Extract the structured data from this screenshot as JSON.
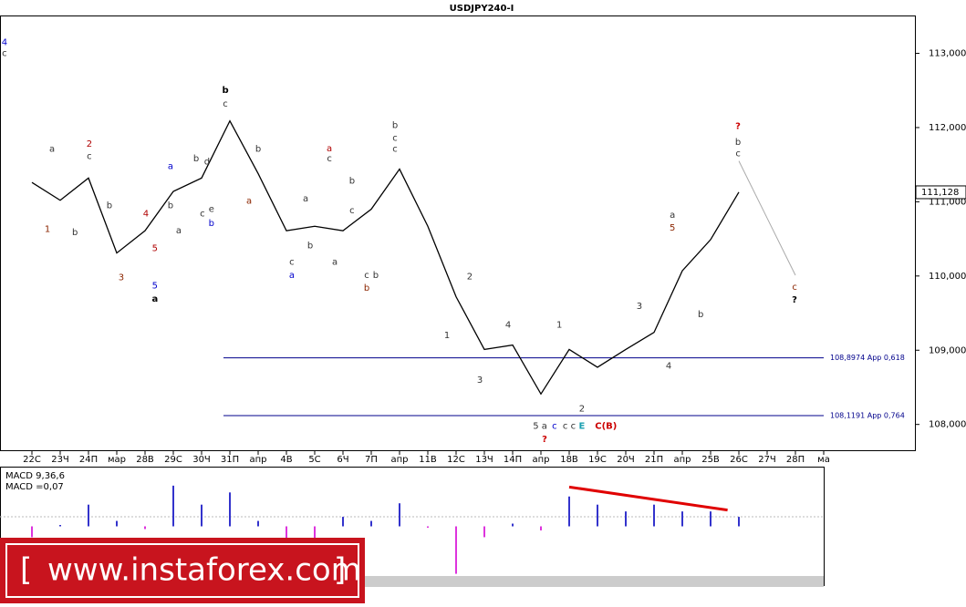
{
  "chart_data": {
    "type": "line",
    "title": "USDJPY240-I",
    "categories": [
      "22С",
      "23Ч",
      "24П",
      "мар",
      "28В",
      "29С",
      "30Ч",
      "31П",
      "апр",
      "4В",
      "5С",
      "6Ч",
      "7П",
      "апр",
      "11В",
      "12С",
      "13Ч",
      "14П",
      "апр",
      "18В",
      "19С",
      "20Ч",
      "21П",
      "апр",
      "25В",
      "26С",
      "27Ч",
      "28П",
      "ма"
    ],
    "series": [
      {
        "name": "USDJPY",
        "color": "#000000",
        "values": [
          111.26,
          111.02,
          111.32,
          110.31,
          110.61,
          111.14,
          111.32,
          112.09,
          111.38,
          110.61,
          110.67,
          110.61,
          110.9,
          111.44,
          110.67,
          109.72,
          109.01,
          109.07,
          108.41,
          109.01,
          108.77,
          109.01,
          109.24,
          110.07,
          110.49,
          111.13,
          null,
          null,
          null
        ]
      },
      {
        "name": "forecast",
        "color": "#aaaaaa",
        "values": [
          null,
          null,
          null,
          null,
          null,
          null,
          null,
          null,
          null,
          null,
          null,
          null,
          null,
          null,
          null,
          null,
          null,
          null,
          null,
          null,
          null,
          null,
          null,
          null,
          null,
          111.55,
          110.78,
          110.01,
          null
        ]
      }
    ],
    "ylim": [
      107.64,
      113.51
    ],
    "yticks": [
      {
        "value": 108,
        "label": "108,000"
      },
      {
        "value": 109,
        "label": "109,000"
      },
      {
        "value": 110,
        "label": "110,000"
      },
      {
        "value": 111,
        "label": "111,000"
      },
      {
        "value": 112,
        "label": "112,000"
      },
      {
        "value": 113,
        "label": "113,000"
      }
    ],
    "current_price": {
      "value": 111.128,
      "label": "111,128"
    },
    "levels": [
      {
        "value": 108.8974,
        "label": "108,8974 App 0,618",
        "color": "#00008b"
      },
      {
        "value": 108.1191,
        "label": "108,1191 App 0,764",
        "color": "#00008b"
      }
    ],
    "annotations": [
      {
        "text": "4",
        "x": -0.97,
        "y": 113.15,
        "color": "#0000cc"
      },
      {
        "text": "c",
        "x": -0.97,
        "y": 113.0,
        "color": "#333333"
      },
      {
        "text": "a",
        "x": 0.71,
        "y": 111.71,
        "color": "#333333"
      },
      {
        "text": "1",
        "x": 0.55,
        "y": 110.63,
        "color": "#8b2500"
      },
      {
        "text": "2",
        "x": 2.03,
        "y": 111.78,
        "color": "#b00000"
      },
      {
        "text": "c",
        "x": 2.03,
        "y": 111.61,
        "color": "#333333"
      },
      {
        "text": "b",
        "x": 1.52,
        "y": 110.59,
        "color": "#333333"
      },
      {
        "text": "3",
        "x": 3.16,
        "y": 109.98,
        "color": "#8b2500"
      },
      {
        "text": "4",
        "x": 4.03,
        "y": 110.84,
        "color": "#b00000"
      },
      {
        "text": "5",
        "x": 4.35,
        "y": 110.37,
        "color": "#b00000"
      },
      {
        "text": "5",
        "x": 4.35,
        "y": 109.87,
        "color": "#0000cc"
      },
      {
        "text": "a",
        "x": 4.35,
        "y": 109.69,
        "color": "#000000",
        "bold": true
      },
      {
        "text": "b",
        "x": 2.74,
        "y": 110.95,
        "color": "#333333"
      },
      {
        "text": "a",
        "x": 4.9,
        "y": 111.48,
        "color": "#0000cc"
      },
      {
        "text": "b",
        "x": 4.9,
        "y": 110.95,
        "color": "#333333"
      },
      {
        "text": "a",
        "x": 5.19,
        "y": 110.61,
        "color": "#333333"
      },
      {
        "text": "b",
        "x": 5.81,
        "y": 111.58,
        "color": "#333333"
      },
      {
        "text": "d",
        "x": 6.19,
        "y": 111.54,
        "color": "#333333"
      },
      {
        "text": "c",
        "x": 6.03,
        "y": 110.84,
        "color": "#333333"
      },
      {
        "text": "e",
        "x": 6.35,
        "y": 110.9,
        "color": "#333333"
      },
      {
        "text": "b",
        "x": 6.35,
        "y": 110.71,
        "color": "#0000cc"
      },
      {
        "text": "b",
        "x": 6.84,
        "y": 112.5,
        "color": "#000000",
        "bold": true
      },
      {
        "text": "c",
        "x": 6.84,
        "y": 112.32,
        "color": "#333333"
      },
      {
        "text": "b",
        "x": 8.0,
        "y": 111.71,
        "color": "#333333"
      },
      {
        "text": "a",
        "x": 7.68,
        "y": 111.01,
        "color": "#8b2500"
      },
      {
        "text": "a",
        "x": 9.68,
        "y": 111.04,
        "color": "#333333"
      },
      {
        "text": "c",
        "x": 9.19,
        "y": 110.19,
        "color": "#333333"
      },
      {
        "text": "a",
        "x": 9.19,
        "y": 110.01,
        "color": "#0000cc"
      },
      {
        "text": "b",
        "x": 9.84,
        "y": 110.41,
        "color": "#333333"
      },
      {
        "text": "a",
        "x": 10.52,
        "y": 111.72,
        "color": "#b00000"
      },
      {
        "text": "c",
        "x": 10.52,
        "y": 111.58,
        "color": "#333333"
      },
      {
        "text": "b",
        "x": 11.32,
        "y": 111.28,
        "color": "#333333"
      },
      {
        "text": "a",
        "x": 10.71,
        "y": 110.19,
        "color": "#333333"
      },
      {
        "text": "c",
        "x": 11.32,
        "y": 110.88,
        "color": "#333333"
      },
      {
        "text": "c",
        "x": 11.84,
        "y": 110.01,
        "color": "#333333"
      },
      {
        "text": "b",
        "x": 12.16,
        "y": 110.01,
        "color": "#333333"
      },
      {
        "text": "b",
        "x": 11.84,
        "y": 109.84,
        "color": "#8b2500"
      },
      {
        "text": "b",
        "x": 12.84,
        "y": 112.03,
        "color": "#333333"
      },
      {
        "text": "c",
        "x": 12.84,
        "y": 111.86,
        "color": "#333333"
      },
      {
        "text": "c",
        "x": 12.84,
        "y": 111.71,
        "color": "#333333"
      },
      {
        "text": "2",
        "x": 15.48,
        "y": 109.99,
        "color": "#333333"
      },
      {
        "text": "1",
        "x": 14.68,
        "y": 109.2,
        "color": "#333333"
      },
      {
        "text": "3",
        "x": 15.84,
        "y": 108.6,
        "color": "#333333"
      },
      {
        "text": "4",
        "x": 16.84,
        "y": 109.34,
        "color": "#333333"
      },
      {
        "text": "1",
        "x": 18.65,
        "y": 109.34,
        "color": "#333333"
      },
      {
        "text": "2",
        "x": 19.45,
        "y": 108.21,
        "color": "#333333"
      },
      {
        "text": "5 a",
        "x": 17.97,
        "y": 107.98,
        "color": "#333333"
      },
      {
        "text": "?",
        "x": 18.13,
        "y": 107.8,
        "color": "#cc0000",
        "bold": true
      },
      {
        "text": "c",
        "x": 18.48,
        "y": 107.98,
        "color": "#0000cc"
      },
      {
        "text": "c c",
        "x": 19.0,
        "y": 107.98,
        "color": "#333333"
      },
      {
        "text": "E",
        "x": 19.45,
        "y": 107.98,
        "color": "#1a9fb0",
        "bold": true
      },
      {
        "text": "C(B)",
        "x": 20.3,
        "y": 107.98,
        "color": "#cc0000",
        "bold": true
      },
      {
        "text": "3",
        "x": 21.48,
        "y": 109.59,
        "color": "#333333"
      },
      {
        "text": "4",
        "x": 22.52,
        "y": 108.79,
        "color": "#333333"
      },
      {
        "text": "a",
        "x": 22.65,
        "y": 110.82,
        "color": "#333333"
      },
      {
        "text": "5",
        "x": 22.65,
        "y": 110.65,
        "color": "#8b2500"
      },
      {
        "text": "b",
        "x": 23.65,
        "y": 109.48,
        "color": "#333333"
      },
      {
        "text": "?",
        "x": 24.97,
        "y": 112.02,
        "color": "#cc0000",
        "bold": true
      },
      {
        "text": "b",
        "x": 24.97,
        "y": 111.8,
        "color": "#333333"
      },
      {
        "text": "c",
        "x": 24.97,
        "y": 111.65,
        "color": "#333333"
      },
      {
        "text": "c",
        "x": 26.97,
        "y": 109.85,
        "color": "#8b2500"
      },
      {
        "text": "?",
        "x": 26.97,
        "y": 109.68,
        "color": "#000000",
        "bold": true
      }
    ],
    "macd": {
      "title": "MACD 9,36,6",
      "current": "MACD =0,07",
      "ylim": [
        -0.42,
        0.42
      ],
      "values": [
        -0.08,
        0.01,
        0.16,
        0.04,
        -0.02,
        0.3,
        0.16,
        0.25,
        0.04,
        -0.14,
        -0.14,
        0.07,
        0.04,
        0.17,
        -0.01,
        -0.35,
        -0.08,
        0.02,
        -0.03,
        0.22,
        0.16,
        0.11,
        0.16,
        0.11,
        0.11,
        0.07,
        null,
        null,
        null
      ],
      "positive_color": "#3333cc",
      "negative_color": "#dd33dd",
      "trend": {
        "x": [
          19.0,
          24.6
        ],
        "values": [
          0.29,
          0.12
        ],
        "color": "#e00000"
      }
    },
    "banner": {
      "left": "[",
      "text": "www.instaforex.com",
      "right": "]"
    }
  }
}
